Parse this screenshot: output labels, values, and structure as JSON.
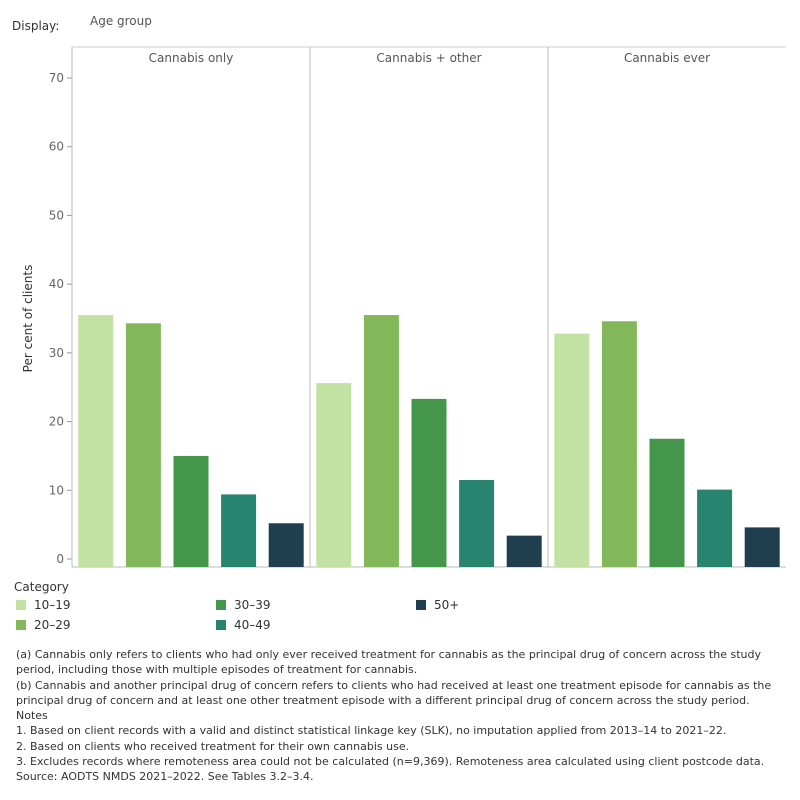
{
  "display": {
    "label": "Display:",
    "value": "Age group"
  },
  "colors": {
    "10-19": "#c2e2a4",
    "20-29": "#82b85a",
    "30-39": "#44974a",
    "40-49": "#27856f",
    "50+": "#1f3f4f"
  },
  "chart_data": {
    "type": "bar",
    "ylabel": "Per cent of clients",
    "ylim": [
      0,
      70
    ],
    "yticks": [
      0,
      10,
      20,
      30,
      40,
      50,
      60,
      70
    ],
    "categories": [
      "10–19",
      "20–29",
      "30–39",
      "40–49",
      "50+"
    ],
    "panels": [
      {
        "title": "Cannabis only",
        "values": [
          35.5,
          34.3,
          15.0,
          9.4,
          5.2
        ]
      },
      {
        "title": "Cannabis + other",
        "values": [
          25.6,
          35.5,
          23.3,
          11.5,
          3.4
        ]
      },
      {
        "title": "Cannabis ever",
        "values": [
          32.8,
          34.6,
          17.5,
          10.1,
          4.6
        ]
      }
    ]
  },
  "legend": {
    "title": "Category",
    "items": [
      {
        "label": "10–19",
        "color": "#c2e2a4"
      },
      {
        "label": "20–29",
        "color": "#82b85a"
      },
      {
        "label": "30–39",
        "color": "#44974a"
      },
      {
        "label": "40–49",
        "color": "#27856f"
      },
      {
        "label": "50+",
        "color": "#1f3f4f"
      }
    ]
  },
  "notes": [
    "(a) Cannabis only refers to clients who had only ever received treatment for cannabis as the principal drug of concern across the study period, including those with multiple episodes of treatment for cannabis.",
    "(b) Cannabis and another principal drug of concern refers to clients who had received at least one treatment episode for cannabis as the principal drug of concern and at least one other treatment episode with a different principal drug of concern across the study period.",
    "Notes",
    "1. Based on client records with a valid and distinct statistical linkage key (SLK), no imputation applied from 2013–14 to 2021–22.",
    "2. Based on clients who received treatment for their own cannabis use.",
    "3. Excludes records where remoteness area could not be calculated (n=9,369). Remoteness area calculated using client postcode data.",
    "Source: AODTS NMDS 2021–2022. See  Tables 3.2–3.4."
  ]
}
